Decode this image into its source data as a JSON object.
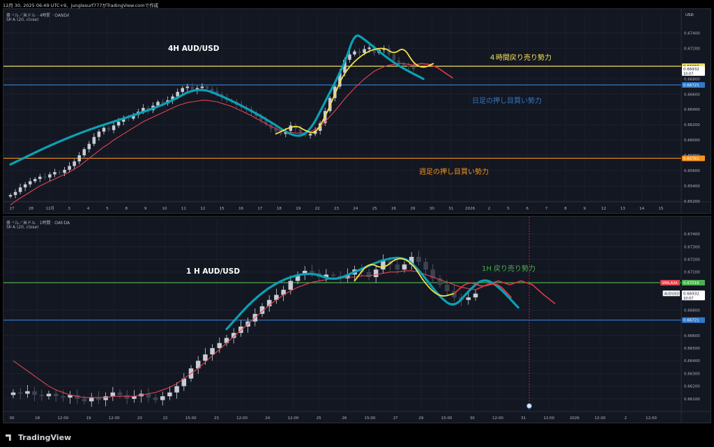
{
  "header": {
    "attribution": "12月 30, 2025 06:49 UTC+9、junglesurf777がTradingView.comで作成"
  },
  "footer": {
    "brand": "TradingView"
  },
  "colors": {
    "sma": "#e04555",
    "up": "#26a69a",
    "down": "#ef5350",
    "bg": "#131722",
    "grid": "#1e2230",
    "annotation_blue": "#3179c9",
    "annotation_yellow": "#f2e15b",
    "annotation_orange": "#f7931a",
    "annotation_green": "#4caf50",
    "drawn_path": "#0aa1b4",
    "drawn_hint_yellow": "#f5e346",
    "drawn_hint_red": "#e03a46"
  },
  "chart_data": [
    {
      "type": "candlestick",
      "title": "4H AUD/USD",
      "symbol_line": "豪ドル／米ドル · 4時間 · OANDA",
      "indicator": "SMA (20, close)",
      "currency": "USD",
      "ylim": [
        0.6519,
        0.6755
      ],
      "y_ticks": [
        "0.67400",
        "0.67200",
        "0.66966",
        "0.66932",
        "0.66800",
        "0.66721",
        "0.66600",
        "0.66400",
        "0.66200",
        "0.66000",
        "0.65800",
        "0.65761",
        "0.65600",
        "0.65400",
        "0.65200"
      ],
      "x_ticks": [
        "27",
        "28",
        "12月",
        "3",
        "4",
        "5",
        "8",
        "9",
        "10",
        "11",
        "12",
        "15",
        "16",
        "17",
        "18",
        "19",
        "22",
        "23",
        "24",
        "25",
        "26",
        "29",
        "30",
        "31",
        "2026",
        "2",
        "5",
        "6",
        "7",
        "8",
        "9",
        "12",
        "13",
        "14",
        "15"
      ],
      "price_labels": [
        {
          "value": 0.66966,
          "text": "0.66966",
          "color": "#f2e15b"
        },
        {
          "value": 0.66932,
          "text": "0.66932",
          "sub": "10:07",
          "color": "#ffffff"
        },
        {
          "value": 0.66721,
          "text": "0.66721",
          "color": "#3179c9"
        },
        {
          "value": 0.65761,
          "text": "0.65761",
          "color": "#f7931a"
        }
      ],
      "horizontal_lines": [
        {
          "value": 0.66966,
          "color": "#f2e15b"
        },
        {
          "value": 0.66721,
          "color": "#3179c9"
        },
        {
          "value": 0.65761,
          "color": "#f7931a"
        }
      ],
      "annotations": [
        {
          "text": "4H AUD/USD",
          "color": "#ffffff"
        },
        {
          "text": "４時間戻り売り勢力",
          "color": "#f2e15b"
        },
        {
          "text": "日足の押し目買い勢力",
          "color": "#3179c9"
        },
        {
          "text": "週足の押し目買い勢力",
          "color": "#f7931a"
        }
      ],
      "close_series": [
        0.6528,
        0.6532,
        0.6538,
        0.6542,
        0.6546,
        0.6549,
        0.6552,
        0.6551,
        0.6555,
        0.6558,
        0.6557,
        0.6561,
        0.6566,
        0.6572,
        0.658,
        0.6588,
        0.6595,
        0.6604,
        0.6611,
        0.6616,
        0.6613,
        0.6619,
        0.6624,
        0.6629,
        0.6628,
        0.6633,
        0.6637,
        0.6642,
        0.6639,
        0.6645,
        0.665,
        0.6648,
        0.6652,
        0.6657,
        0.6663,
        0.6668,
        0.667,
        0.6665,
        0.6668,
        0.667,
        0.6667,
        0.6664,
        0.666,
        0.6656,
        0.6652,
        0.665,
        0.6646,
        0.6643,
        0.664,
        0.6636,
        0.6631,
        0.6626,
        0.6621,
        0.6615,
        0.6611,
        0.6608,
        0.6612,
        0.6619,
        0.6615,
        0.6609,
        0.6606,
        0.6608,
        0.6612,
        0.6622,
        0.6638,
        0.6655,
        0.667,
        0.6688,
        0.6705,
        0.6712,
        0.6716,
        0.6714,
        0.6719,
        0.6721,
        0.6714,
        0.6718,
        0.672,
        0.6712,
        0.6704,
        0.67,
        0.6698,
        0.6696,
        0.6693
      ],
      "sma_series": [
        0.6515,
        0.652,
        0.6524,
        0.6528,
        0.6532,
        0.6536,
        0.654,
        0.6543,
        0.6546,
        0.6549,
        0.6552,
        0.6555,
        0.6558,
        0.6562,
        0.6566,
        0.6571,
        0.6576,
        0.6581,
        0.6586,
        0.6591,
        0.6595,
        0.66,
        0.6604,
        0.6608,
        0.6612,
        0.6616,
        0.662,
        0.6624,
        0.6627,
        0.663,
        0.6633,
        0.6636,
        0.6639,
        0.6642,
        0.6645,
        0.6647,
        0.6649,
        0.665,
        0.6651,
        0.6652,
        0.6652,
        0.6651,
        0.665,
        0.6648,
        0.6646,
        0.6644,
        0.6641,
        0.6638,
        0.6635,
        0.6632,
        0.6628,
        0.6625,
        0.6621,
        0.6618,
        0.6615,
        0.6612,
        0.6611,
        0.661,
        0.6609,
        0.6609,
        0.6609,
        0.6611,
        0.6614,
        0.6618,
        0.6624,
        0.6631,
        0.6638,
        0.6646,
        0.6654,
        0.6661,
        0.6668,
        0.6674,
        0.668,
        0.6685,
        0.669,
        0.6693,
        0.6696,
        0.6698,
        0.6699,
        0.67,
        0.67,
        0.6699,
        0.6698
      ],
      "sma_projection": [
        0.6698,
        0.67,
        0.6699,
        0.6695,
        0.6688,
        0.6681
      ],
      "drawn_path": [
        [
          0,
          0.6568
        ],
        [
          8,
          0.6593
        ],
        [
          16,
          0.6614
        ],
        [
          24,
          0.663
        ],
        [
          32,
          0.6648
        ],
        [
          38,
          0.667
        ],
        [
          44,
          0.6655
        ],
        [
          52,
          0.6628
        ],
        [
          58,
          0.6602
        ],
        [
          61,
          0.6612
        ],
        [
          64,
          0.665
        ],
        [
          68,
          0.67
        ],
        [
          70,
          0.674
        ],
        [
          72,
          0.6732
        ],
        [
          78,
          0.67
        ],
        [
          84,
          0.668
        ]
      ],
      "drawn_hint_yellow": [
        [
          54,
          0.6608
        ],
        [
          58,
          0.662
        ],
        [
          60,
          0.6612
        ],
        [
          62,
          0.6608
        ],
        [
          64,
          0.663
        ],
        [
          66,
          0.666
        ],
        [
          68,
          0.669
        ],
        [
          72,
          0.6715
        ],
        [
          76,
          0.6722
        ],
        [
          78,
          0.6712
        ],
        [
          80,
          0.6722
        ],
        [
          82,
          0.67
        ],
        [
          84,
          0.6694
        ],
        [
          86,
          0.67
        ]
      ]
    },
    {
      "type": "candlestick",
      "title": "1 H AUD/USD",
      "symbol_line": "豪ドル／米ドル · 1時間 · OANDA",
      "indicator": "SMA (20, close)",
      "ylim": [
        0.66,
        0.6745
      ],
      "y_ticks": [
        "0.67400",
        "0.67300",
        "0.67200",
        "0.67100",
        "0.67016",
        "0.66932",
        "0.66800",
        "0.66721",
        "0.66600",
        "0.66500",
        "0.66400",
        "0.66300",
        "0.66200",
        "0.66100"
      ],
      "x_ticks": [
        "00",
        "18",
        "12:00",
        "19",
        "12:00",
        "20",
        "22",
        "15:00",
        "23",
        "12:00",
        "24",
        "12:00",
        "25",
        "26",
        "15:00",
        "27",
        "29",
        "15:00",
        "30",
        "12:00",
        "31",
        "12:00",
        "2026",
        "12:00",
        "2",
        "12:00"
      ],
      "price_labels": [
        {
          "value": 0.67016,
          "text": "0.67016",
          "color": "#4caf50",
          "tag": "SMA,AXA"
        },
        {
          "value": 0.66932,
          "text": "0.66932",
          "sub": "10:07",
          "color": "#ffffff",
          "tag": "AUDUSD"
        },
        {
          "value": 0.66721,
          "text": "0.66721",
          "color": "#3179c9"
        }
      ],
      "horizontal_lines": [
        {
          "value": 0.67016,
          "color": "#4caf50"
        },
        {
          "value": 0.66721,
          "color": "#3179c9"
        }
      ],
      "annotations": [
        {
          "text": "1 H AUD/USD",
          "color": "#ffffff"
        },
        {
          "text": "1H 戻り売り勢力",
          "color": "#4caf50"
        }
      ],
      "close_series": [
        0.6615,
        0.6614,
        0.6616,
        0.6613,
        0.6612,
        0.6614,
        0.6612,
        0.6611,
        0.6613,
        0.661,
        0.6608,
        0.6611,
        0.6609,
        0.6612,
        0.6615,
        0.6613,
        0.661,
        0.6612,
        0.6614,
        0.6611,
        0.6609,
        0.6612,
        0.6615,
        0.662,
        0.6626,
        0.6634,
        0.664,
        0.6645,
        0.665,
        0.6654,
        0.6658,
        0.6662,
        0.6667,
        0.6671,
        0.6677,
        0.6683,
        0.6688,
        0.6692,
        0.6696,
        0.6703,
        0.6708,
        0.6711,
        0.6709,
        0.6706,
        0.6708,
        0.6707,
        0.6705,
        0.6708,
        0.6712,
        0.671,
        0.6706,
        0.6712,
        0.6719,
        0.6716,
        0.6712,
        0.6716,
        0.6722,
        0.6718,
        0.6712,
        0.6705,
        0.67,
        0.6695,
        0.669,
        0.6688,
        0.669,
        0.6693
      ],
      "sma_series": [
        0.664,
        0.6636,
        0.6632,
        0.6628,
        0.6624,
        0.662,
        0.6617,
        0.6615,
        0.6613,
        0.6612,
        0.6611,
        0.6611,
        0.6611,
        0.6611,
        0.6612,
        0.6612,
        0.6612,
        0.6612,
        0.6613,
        0.6614,
        0.6615,
        0.6617,
        0.6619,
        0.6622,
        0.6626,
        0.663,
        0.6634,
        0.6639,
        0.6644,
        0.6649,
        0.6654,
        0.6659,
        0.6664,
        0.6669,
        0.6674,
        0.6679,
        0.6684,
        0.6688,
        0.6692,
        0.6695,
        0.6698,
        0.67,
        0.6702,
        0.6703,
        0.6704,
        0.6705,
        0.6705,
        0.6706,
        0.6706,
        0.6707,
        0.6707,
        0.6708,
        0.6709,
        0.671,
        0.671,
        0.6711,
        0.6711,
        0.671,
        0.6708,
        0.6706,
        0.6704,
        0.6702,
        0.67,
        0.6698,
        0.6697,
        0.6696
      ],
      "sma_projection": [
        0.6696,
        0.67,
        0.6703,
        0.67,
        0.6703,
        0.67,
        0.6692,
        0.6685
      ],
      "drawn_path": [
        [
          30,
          0.6665
        ],
        [
          34,
          0.669
        ],
        [
          38,
          0.6705
        ],
        [
          42,
          0.671
        ],
        [
          45,
          0.6703
        ],
        [
          48,
          0.671
        ],
        [
          52,
          0.672
        ],
        [
          55,
          0.6722
        ],
        [
          57,
          0.6712
        ],
        [
          60,
          0.669
        ],
        [
          62,
          0.6682
        ],
        [
          64,
          0.6695
        ],
        [
          66,
          0.6705
        ],
        [
          68,
          0.67
        ],
        [
          71,
          0.6682
        ]
      ],
      "drawn_hint_yellow": [
        [
          48,
          0.6703
        ],
        [
          50,
          0.6718
        ],
        [
          52,
          0.6712
        ],
        [
          54,
          0.6722
        ],
        [
          56,
          0.6718
        ],
        [
          58,
          0.67
        ],
        [
          60,
          0.669
        ],
        [
          62,
          0.6693
        ]
      ],
      "drawn_hint_red": [
        [
          62,
          0.6693
        ],
        [
          64,
          0.6703
        ],
        [
          66,
          0.6698
        ],
        [
          68,
          0.6702
        ],
        [
          70,
          0.669
        ]
      ]
    }
  ]
}
